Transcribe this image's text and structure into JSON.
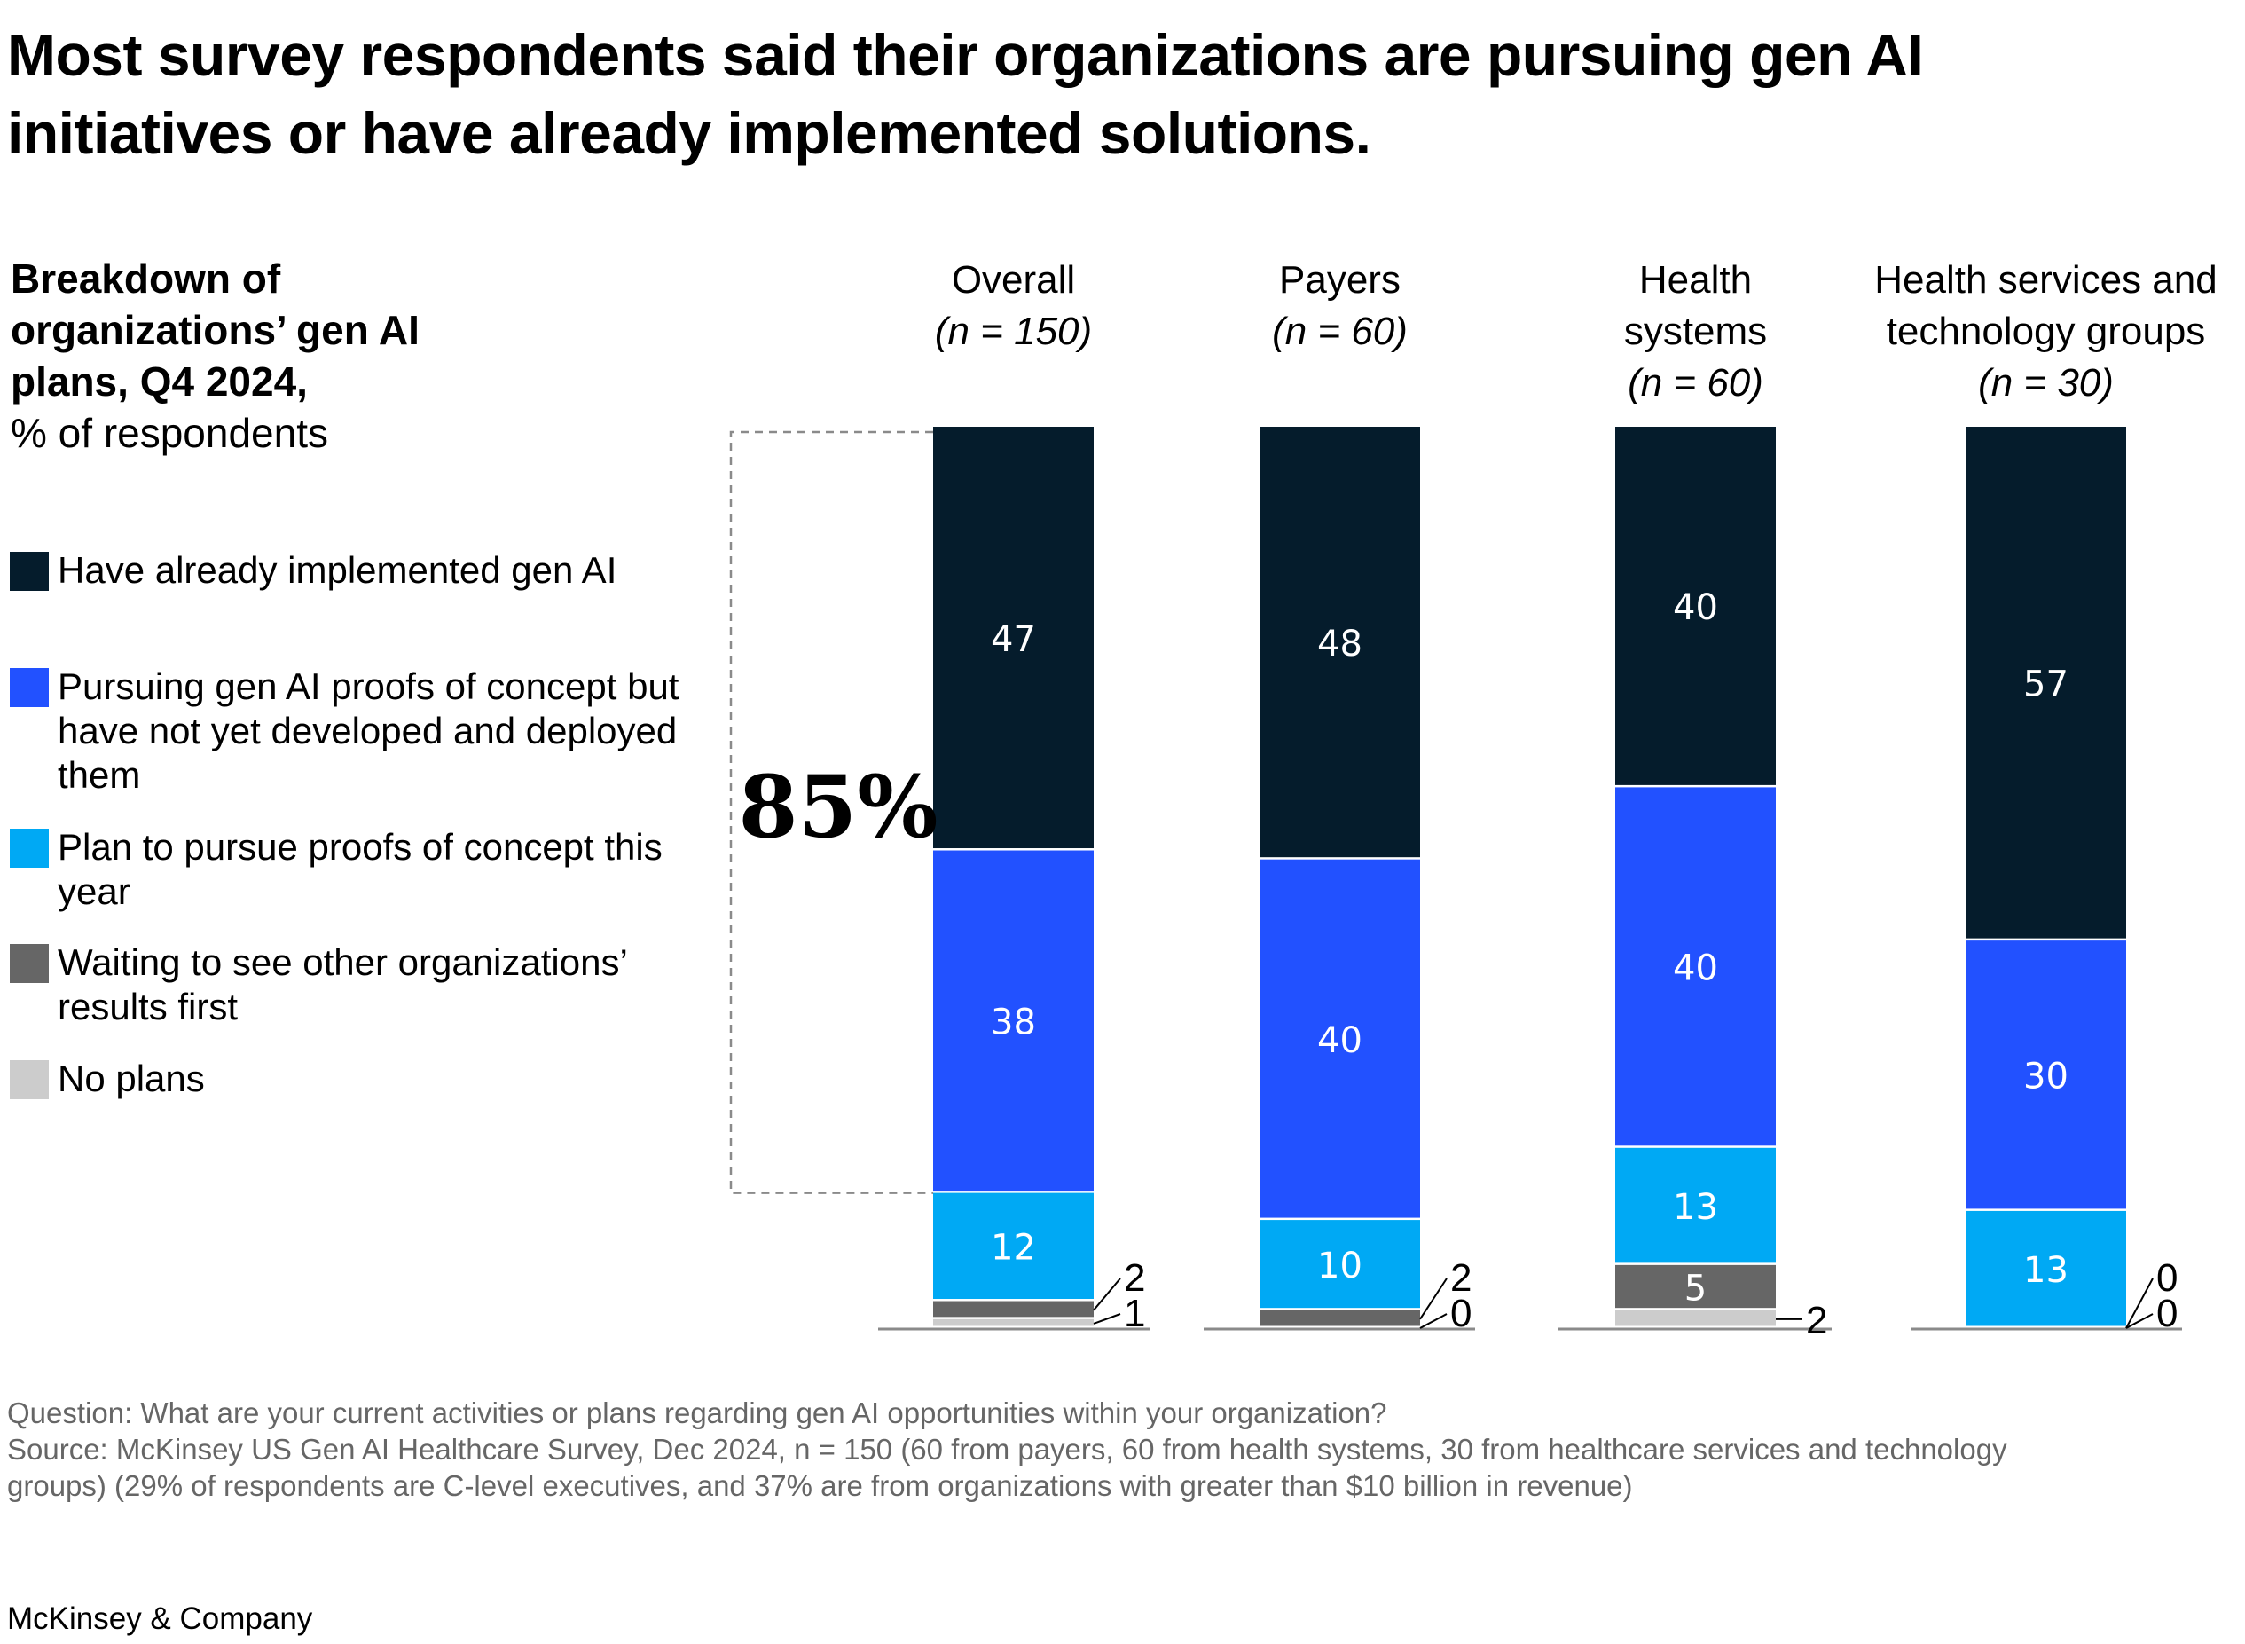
{
  "title": "Most survey respondents said their organizations are pursuing gen AI initiatives or have already implemented solutions.",
  "subtitle": {
    "bold": "Breakdown of organizations’ gen AI plans, Q4 2024,",
    "unit": "% of respondents"
  },
  "legend": [
    {
      "label": "Have already implemented gen AI",
      "color": "#051C2C"
    },
    {
      "label": "Pursuing gen AI proofs of concept but have not yet developed and deployed them",
      "color": "#2251FF"
    },
    {
      "label": "Plan to pursue proofs of concept this year",
      "color": "#00A9F4"
    },
    {
      "label": "Waiting to see other organizations’ results first",
      "color": "#666666"
    },
    {
      "label": "No plans",
      "color": "#CCCCCC"
    }
  ],
  "chart_data": {
    "type": "bar",
    "stacked": true,
    "title": "Breakdown of organizations’ gen AI plans, Q4 2024, % of respondents",
    "categories": [
      {
        "name": "Overall",
        "n": "(n = 150)"
      },
      {
        "name": "Payers",
        "n": "(n = 60)"
      },
      {
        "name": "Health systems",
        "n": "(n = 60)"
      },
      {
        "name": "Health services and technology groups",
        "n": "(n = 30)"
      }
    ],
    "category_label_lines": [
      [
        "Overall"
      ],
      [
        "Payers"
      ],
      [
        "Health",
        "systems"
      ],
      [
        "Health services and",
        "technology groups"
      ]
    ],
    "series": [
      {
        "name": "Have already implemented gen AI",
        "color": "#051C2C",
        "values": [
          47,
          48,
          40,
          57
        ]
      },
      {
        "name": "Pursuing gen AI proofs of concept but have not yet developed and deployed them",
        "color": "#2251FF",
        "values": [
          38,
          40,
          40,
          30
        ]
      },
      {
        "name": "Plan to pursue proofs of concept this year",
        "color": "#00A9F4",
        "values": [
          12,
          10,
          13,
          13
        ]
      },
      {
        "name": "Waiting to see other organizations’ results first",
        "color": "#666666",
        "values": [
          2,
          2,
          5,
          0
        ]
      },
      {
        "name": "No plans",
        "color": "#CCCCCC",
        "values": [
          1,
          0,
          2,
          0
        ]
      }
    ],
    "annotation": {
      "label": "85%",
      "category": "Overall",
      "covers_series": [
        0,
        1
      ],
      "value": 85
    },
    "xlabel": "",
    "ylabel": "% of respondents",
    "ylim": [
      0,
      100
    ],
    "grid": false,
    "legend_position": "left"
  },
  "footnote": {
    "question": "Question: What are your current activities or plans regarding gen AI opportunities within your organization?",
    "source_line1": "Source: McKinsey US Gen AI Healthcare Survey, Dec 2024, n = 150 (60 from payers, 60 from health systems, 30 from healthcare services and technology",
    "source_line2": "groups) (29% of respondents are C-level executives, and 37% are from organizations with greater than $10 billion in revenue)"
  },
  "brand": "McKinsey & Company"
}
